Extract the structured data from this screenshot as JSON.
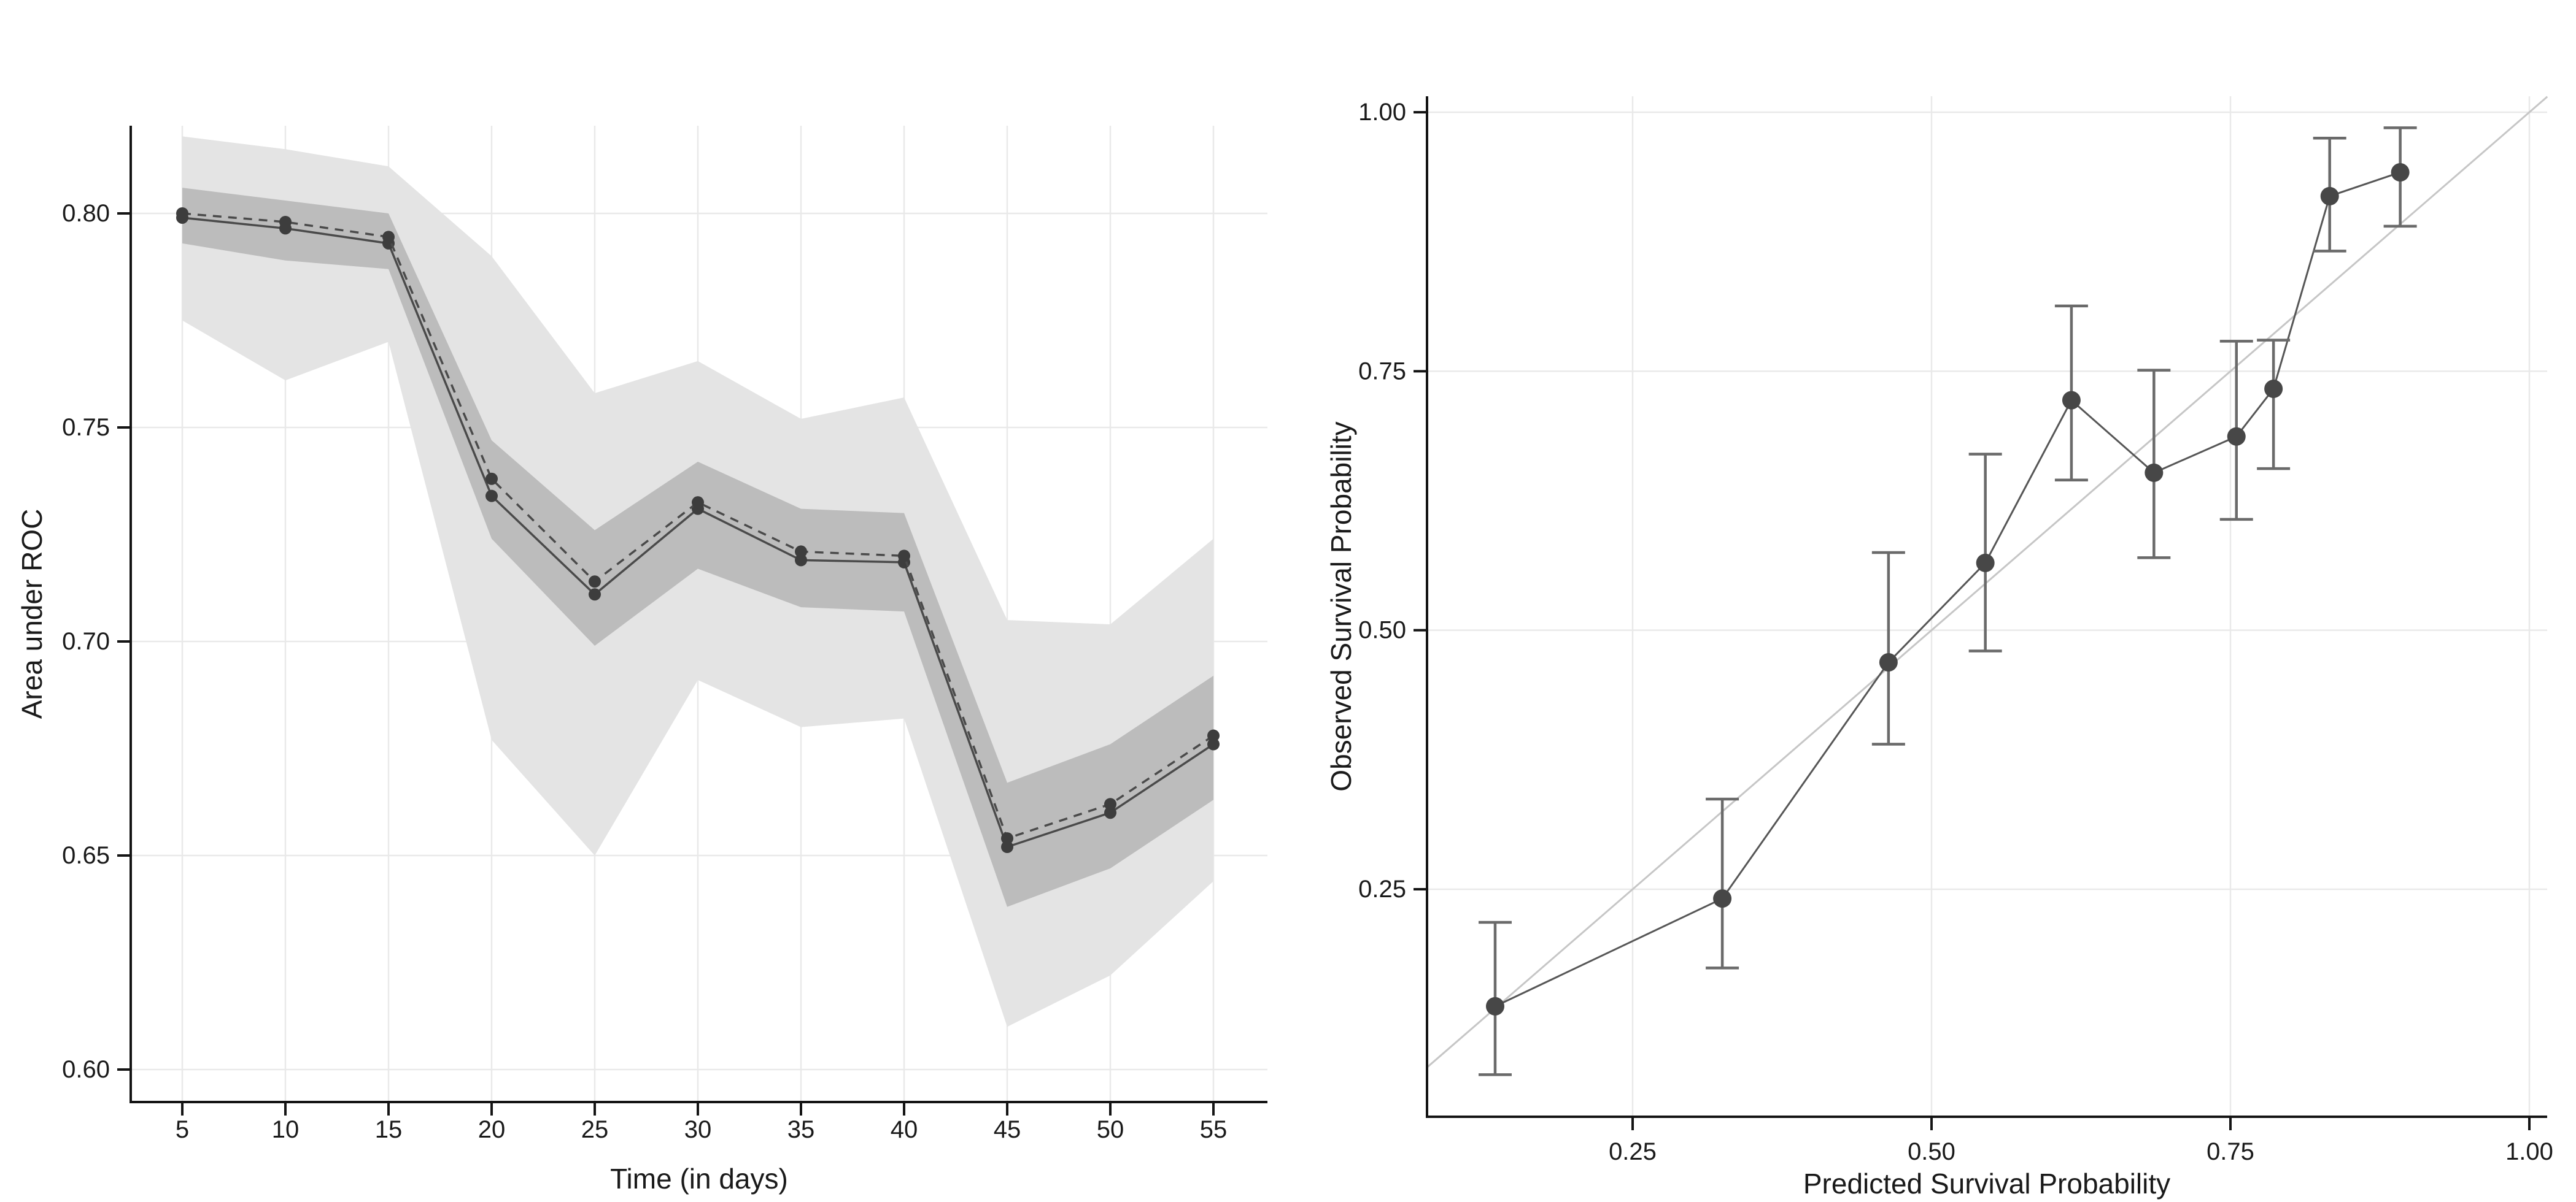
{
  "figure": {
    "background": "#ffffff",
    "grid_color": "#e9e9e9",
    "axis_line_color": "#141414",
    "text_color": "#1a1a1a",
    "charts": [
      {
        "id": "auc-over-time",
        "type": "line",
        "xlabel": "Time (in days)",
        "ylabel": "Area under ROC",
        "x": [
          5,
          10,
          15,
          20,
          25,
          30,
          35,
          40,
          45,
          50,
          55
        ],
        "series": [
          {
            "name": "auc-solid",
            "style": "solid",
            "values": [
              0.799,
              0.7965,
              0.793,
              0.734,
              0.711,
              0.731,
              0.719,
              0.7185,
              0.652,
              0.66,
              0.676
            ]
          },
          {
            "name": "auc-dashed",
            "style": "dashed",
            "values": [
              0.8,
              0.798,
              0.7945,
              0.738,
              0.714,
              0.7325,
              0.721,
              0.72,
              0.654,
              0.662,
              0.678
            ]
          }
        ],
        "bands": [
          {
            "name": "outer-confidence-band",
            "color": "#e4e4e4",
            "upper": [
              0.818,
              0.815,
              0.811,
              0.79,
              0.758,
              0.7655,
              0.752,
              0.757,
              0.705,
              0.704,
              0.724
            ],
            "lower": [
              0.775,
              0.761,
              0.77,
              0.677,
              0.65,
              0.691,
              0.68,
              0.682,
              0.61,
              0.622,
              0.644
            ]
          },
          {
            "name": "inner-confidence-band",
            "color": "#bcbcbc",
            "upper": [
              0.806,
              0.803,
              0.8,
              0.747,
              0.726,
              0.742,
              0.731,
              0.73,
              0.667,
              0.676,
              0.692
            ],
            "lower": [
              0.793,
              0.789,
              0.787,
              0.724,
              0.699,
              0.717,
              0.708,
              0.707,
              0.638,
              0.647,
              0.663
            ]
          }
        ],
        "xticks": {
          "values": [
            5,
            10,
            15,
            20,
            25,
            30,
            35,
            40,
            45,
            50,
            55
          ],
          "labels": [
            "5",
            "10",
            "15",
            "20",
            "25",
            "30",
            "35",
            "40",
            "45",
            "50",
            "55"
          ]
        },
        "yticks": {
          "values": [
            0.6,
            0.65,
            0.7,
            0.75,
            0.8
          ],
          "labels": [
            "0.60",
            "0.65",
            "0.70",
            "0.75",
            "0.80"
          ]
        },
        "xlim": [
          2.4,
          57.8
        ],
        "ylim": [
          0.592,
          0.8205
        ],
        "grid": true,
        "legend": "none",
        "line_color": "#4a4a4a",
        "point_color": "#3d3d3d"
      },
      {
        "id": "calibration-plot",
        "type": "scatter",
        "xlabel": "Predicted Survival Probability",
        "ylabel": "Observed Survival Probability",
        "points": [
          {
            "x": 0.135,
            "y": 0.137,
            "ci_low": 0.071,
            "ci_high": 0.218
          },
          {
            "x": 0.325,
            "y": 0.241,
            "ci_low": 0.174,
            "ci_high": 0.337
          },
          {
            "x": 0.464,
            "y": 0.469,
            "ci_low": 0.39,
            "ci_high": 0.575
          },
          {
            "x": 0.545,
            "y": 0.565,
            "ci_low": 0.48,
            "ci_high": 0.67
          },
          {
            "x": 0.617,
            "y": 0.722,
            "ci_low": 0.645,
            "ci_high": 0.813
          },
          {
            "x": 0.686,
            "y": 0.652,
            "ci_low": 0.57,
            "ci_high": 0.751
          },
          {
            "x": 0.755,
            "y": 0.687,
            "ci_low": 0.607,
            "ci_high": 0.779
          },
          {
            "x": 0.786,
            "y": 0.733,
            "ci_low": 0.656,
            "ci_high": 0.78
          },
          {
            "x": 0.833,
            "y": 0.919,
            "ci_low": 0.866,
            "ci_high": 0.975
          },
          {
            "x": 0.892,
            "y": 0.942,
            "ci_low": 0.89,
            "ci_high": 0.985
          }
        ],
        "connect_points": true,
        "reference_line": {
          "name": "identity-line",
          "color": "#c6c6c6"
        },
        "xticks": {
          "values": [
            0.25,
            0.5,
            0.75,
            1.0
          ],
          "labels": [
            "0.25",
            "0.50",
            "0.75",
            "1.00"
          ]
        },
        "yticks": {
          "values": [
            0.25,
            0.5,
            0.75,
            1.0
          ],
          "labels": [
            "0.25",
            "0.50",
            "0.75",
            "1.00"
          ]
        },
        "xlim": [
          0.078,
          1.015
        ],
        "ylim": [
          0.03,
          1.0154
        ],
        "grid": true,
        "legend": "none",
        "line_color": "#565656",
        "point_color": "#474747",
        "errorbar_color": "#6a6a6a"
      }
    ]
  }
}
